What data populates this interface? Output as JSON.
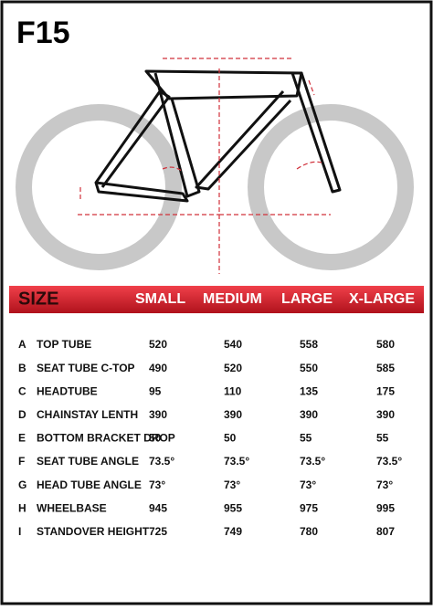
{
  "header": {
    "title": "F15"
  },
  "table": {
    "columns": [
      "SIZE",
      "SMALL",
      "MEDIUM",
      "LARGE",
      "X-LARGE"
    ],
    "rows": [
      [
        "A",
        "TOP TUBE",
        "520",
        "540",
        "558",
        "580"
      ],
      [
        "B",
        "SEAT TUBE C-TOP",
        "490",
        "520",
        "550",
        "585"
      ],
      [
        "C",
        "HEADTUBE",
        "95",
        "110",
        "135",
        "175"
      ],
      [
        "D",
        "CHAINSTAY LENTH",
        "390",
        "390",
        "390",
        "390"
      ],
      [
        "E",
        "BOTTOM BRACKET DROP",
        "50",
        "50",
        "55",
        "55"
      ],
      [
        "F",
        "SEAT TUBE ANGLE",
        "73.5°",
        "73.5°",
        "73.5°",
        "73.5°"
      ],
      [
        "G",
        "HEAD TUBE ANGLE",
        "73°",
        "73°",
        "73°",
        "73°"
      ],
      [
        "H",
        "WHEELBASE",
        "945",
        "955",
        "975",
        "995"
      ],
      [
        "I",
        "STANDOVER HEIGHT",
        "725",
        "749",
        "780",
        "807"
      ]
    ]
  }
}
